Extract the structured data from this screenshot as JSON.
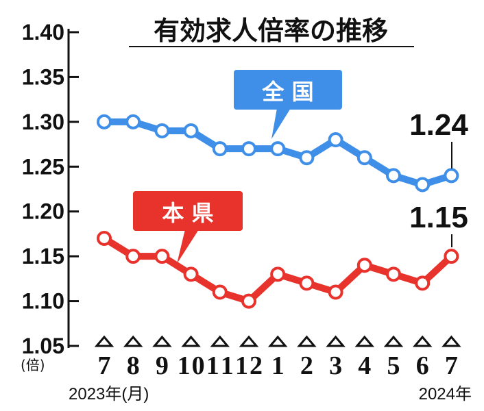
{
  "chart_data": {
    "type": "line",
    "title": "有効求人倍率の推移",
    "yunit": "(倍)",
    "categories": [
      "7",
      "8",
      "9",
      "10",
      "11",
      "12",
      "1",
      "2",
      "3",
      "4",
      "5",
      "6",
      "7"
    ],
    "year_start": "2023年(月)",
    "year_end": "2024年",
    "yticks": [
      "1.40",
      "1.35",
      "1.30",
      "1.25",
      "1.20",
      "1.15",
      "1.10",
      "1.05"
    ],
    "ylim": [
      1.05,
      1.4
    ],
    "grid": false,
    "series": [
      {
        "name": "全 国",
        "color": "#3f8fe8",
        "values": [
          1.3,
          1.3,
          1.29,
          1.29,
          1.27,
          1.27,
          1.27,
          1.26,
          1.28,
          1.26,
          1.24,
          1.23,
          1.24
        ],
        "last_label": "1.24"
      },
      {
        "name": "本 県",
        "color": "#e8322c",
        "values": [
          1.17,
          1.15,
          1.15,
          1.13,
          1.11,
          1.1,
          1.13,
          1.12,
          1.11,
          1.14,
          1.13,
          1.12,
          1.15
        ],
        "last_label": "1.15"
      }
    ]
  }
}
